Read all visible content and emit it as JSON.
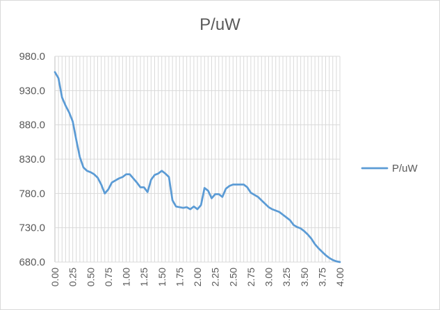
{
  "chart_data": {
    "type": "line",
    "title": "P/uW",
    "xlabel": "",
    "ylabel": "",
    "legend_position": "right",
    "grid": true,
    "x_range": [
      0,
      4
    ],
    "ylim": [
      680,
      980
    ],
    "y_ticks": [
      "680.0",
      "730.0",
      "780.0",
      "830.0",
      "880.0",
      "930.0",
      "980.0"
    ],
    "x_ticks": [
      "0.00",
      "0.05",
      "0.10",
      "0.15",
      "0.20",
      "0.25",
      "0.30",
      "0.35",
      "0.40",
      "0.45",
      "0.50",
      "0.55",
      "0.60",
      "0.65",
      "0.70",
      "0.75",
      "0.80",
      "0.85",
      "0.90",
      "0.95",
      "1.00",
      "1.05",
      "1.10",
      "1.15",
      "1.20",
      "1.25",
      "1.30",
      "1.35",
      "1.40",
      "1.45",
      "1.50",
      "1.55",
      "1.60",
      "1.65",
      "1.70",
      "1.75",
      "1.80",
      "1.85",
      "1.90",
      "1.95",
      "2.00",
      "2.05",
      "2.10",
      "2.15",
      "2.20",
      "2.25",
      "2.30",
      "2.35",
      "2.40",
      "2.45",
      "2.50",
      "2.55",
      "2.60",
      "2.65",
      "2.70",
      "2.75",
      "2.80",
      "2.85",
      "2.90",
      "2.95",
      "3.00",
      "3.05",
      "3.10",
      "3.15",
      "3.20",
      "3.25",
      "3.30",
      "3.35",
      "3.40",
      "3.45",
      "3.50",
      "3.55",
      "3.60",
      "3.65",
      "3.70",
      "3.75",
      "3.80",
      "3.85",
      "3.90",
      "3.95",
      "4.00"
    ],
    "x_tick_labels_shown": [
      "0.00",
      "0.25",
      "0.50",
      "0.75",
      "1.00",
      "1.25",
      "1.50",
      "1.75",
      "2.00",
      "2.25",
      "2.50",
      "2.75",
      "3.00",
      "3.25",
      "3.50",
      "3.75",
      "4.00"
    ],
    "line_color": "#5b9bd5",
    "series": [
      {
        "name": "P/uW",
        "values": [
          957,
          948,
          920,
          908,
          898,
          885,
          858,
          833,
          818,
          813,
          811,
          808,
          803,
          793,
          780,
          786,
          796,
          799,
          802,
          804,
          808,
          808,
          802,
          796,
          789,
          789,
          782,
          800,
          807,
          809,
          813,
          809,
          804,
          770,
          761,
          760,
          759,
          760,
          757,
          761,
          757,
          763,
          788,
          784,
          773,
          779,
          779,
          775,
          787,
          791,
          793,
          793,
          793,
          793,
          789,
          781,
          778,
          775,
          770,
          765,
          760,
          757,
          755,
          753,
          749,
          745,
          741,
          734,
          731,
          729,
          725,
          720,
          714,
          706,
          700,
          695,
          690,
          686,
          683,
          681,
          680
        ]
      }
    ]
  }
}
